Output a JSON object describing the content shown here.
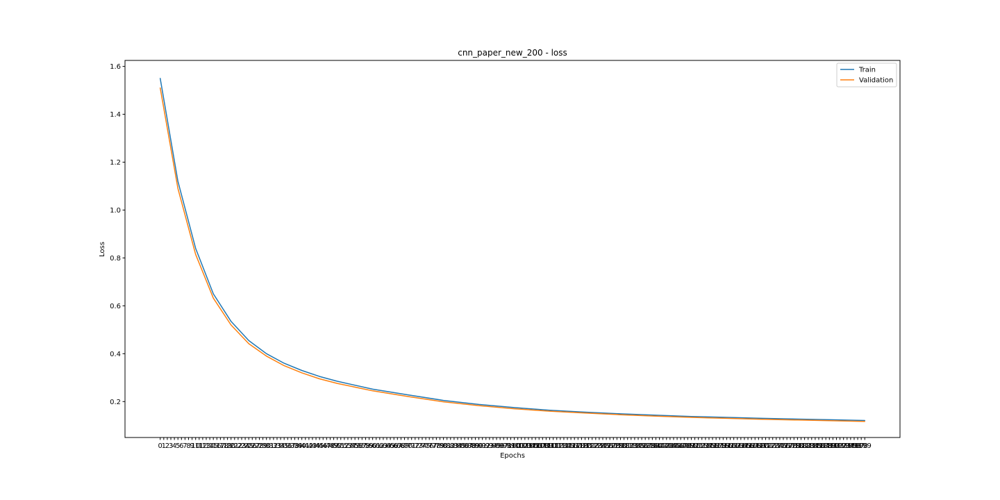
{
  "chart_data": {
    "type": "line",
    "title": "cnn_paper_new_200 - loss",
    "xlabel": "Epochs",
    "ylabel": "Loss",
    "xlim": [
      -9.95,
      208.95
    ],
    "ylim": [
      0.05,
      1.625
    ],
    "yticks": [
      0.2,
      0.4,
      0.6,
      0.8,
      1.0,
      1.2,
      1.4,
      1.6
    ],
    "ytick_labels": [
      "0.2",
      "0.4",
      "0.6",
      "0.8",
      "1.0",
      "1.2",
      "1.4",
      "1.6"
    ],
    "x_ticks_every_epoch": true,
    "legend_position": "upper-right",
    "grid": false,
    "series": [
      {
        "name": "Train",
        "color": "#1f77b4",
        "x": [
          0,
          5,
          10,
          15,
          20,
          25,
          30,
          35,
          40,
          45,
          50,
          60,
          70,
          80,
          90,
          100,
          110,
          120,
          130,
          140,
          150,
          160,
          170,
          180,
          190,
          199
        ],
        "values": [
          1.55,
          1.12,
          0.84,
          0.65,
          0.535,
          0.455,
          0.4,
          0.36,
          0.33,
          0.305,
          0.285,
          0.252,
          0.228,
          0.205,
          0.188,
          0.175,
          0.164,
          0.156,
          0.149,
          0.143,
          0.138,
          0.134,
          0.13,
          0.127,
          0.124,
          0.121
        ]
      },
      {
        "name": "Validation",
        "color": "#ff7f0e",
        "x": [
          0,
          5,
          10,
          15,
          20,
          25,
          30,
          35,
          40,
          45,
          50,
          60,
          70,
          80,
          90,
          100,
          110,
          120,
          130,
          140,
          150,
          160,
          170,
          180,
          190,
          199
        ],
        "values": [
          1.51,
          1.09,
          0.815,
          0.632,
          0.52,
          0.442,
          0.39,
          0.35,
          0.32,
          0.295,
          0.276,
          0.245,
          0.221,
          0.199,
          0.183,
          0.17,
          0.16,
          0.152,
          0.145,
          0.139,
          0.134,
          0.13,
          0.126,
          0.123,
          0.12,
          0.117
        ]
      }
    ]
  }
}
